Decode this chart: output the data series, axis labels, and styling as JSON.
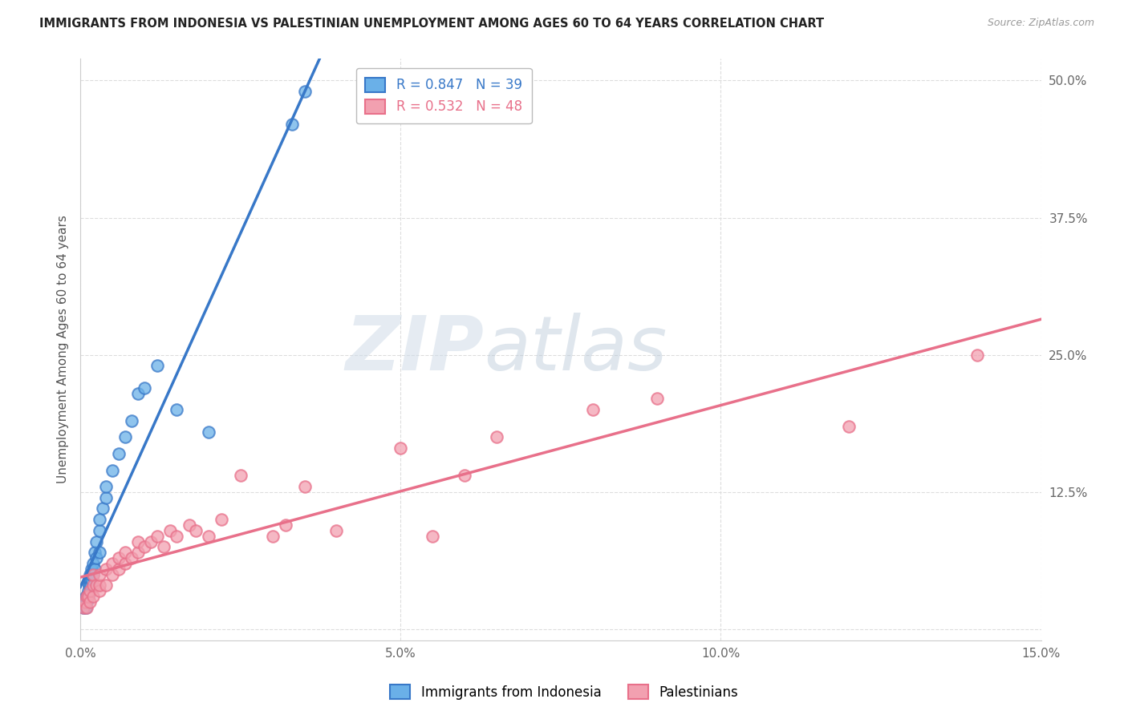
{
  "title": "IMMIGRANTS FROM INDONESIA VS PALESTINIAN UNEMPLOYMENT AMONG AGES 60 TO 64 YEARS CORRELATION CHART",
  "source": "Source: ZipAtlas.com",
  "ylabel": "Unemployment Among Ages 60 to 64 years",
  "xlim": [
    0.0,
    0.15
  ],
  "ylim": [
    -0.01,
    0.52
  ],
  "xticks": [
    0.0,
    0.05,
    0.1,
    0.15
  ],
  "xticklabels": [
    "0.0%",
    "5.0%",
    "10.0%",
    "15.0%"
  ],
  "yticks": [
    0.0,
    0.125,
    0.25,
    0.375,
    0.5
  ],
  "yticklabels": [
    "",
    "12.5%",
    "25.0%",
    "37.5%",
    "50.0%"
  ],
  "legend_labels": [
    "Immigrants from Indonesia",
    "Palestinians"
  ],
  "blue_R": 0.847,
  "blue_N": 39,
  "pink_R": 0.532,
  "pink_N": 48,
  "blue_color": "#6ab0e8",
  "pink_color": "#f2a0b0",
  "blue_line_color": "#3878c8",
  "pink_line_color": "#e8708a",
  "watermark_zip": "ZIP",
  "watermark_atlas": "atlas",
  "blue_scatter_x": [
    0.0005,
    0.0007,
    0.0008,
    0.0009,
    0.001,
    0.001,
    0.0012,
    0.0012,
    0.0013,
    0.0014,
    0.0015,
    0.0015,
    0.0016,
    0.0017,
    0.0018,
    0.0018,
    0.002,
    0.002,
    0.0022,
    0.0022,
    0.0025,
    0.0025,
    0.003,
    0.003,
    0.003,
    0.0035,
    0.004,
    0.004,
    0.005,
    0.006,
    0.007,
    0.008,
    0.009,
    0.01,
    0.012,
    0.015,
    0.02,
    0.033,
    0.035
  ],
  "blue_scatter_y": [
    0.02,
    0.025,
    0.02,
    0.03,
    0.025,
    0.03,
    0.03,
    0.035,
    0.04,
    0.04,
    0.045,
    0.05,
    0.04,
    0.045,
    0.05,
    0.055,
    0.05,
    0.06,
    0.055,
    0.07,
    0.065,
    0.08,
    0.07,
    0.09,
    0.1,
    0.11,
    0.12,
    0.13,
    0.145,
    0.16,
    0.175,
    0.19,
    0.215,
    0.22,
    0.24,
    0.2,
    0.18,
    0.46,
    0.49
  ],
  "pink_scatter_x": [
    0.0005,
    0.0007,
    0.001,
    0.001,
    0.0012,
    0.0015,
    0.0015,
    0.002,
    0.002,
    0.002,
    0.0025,
    0.003,
    0.003,
    0.003,
    0.004,
    0.004,
    0.005,
    0.005,
    0.006,
    0.006,
    0.007,
    0.007,
    0.008,
    0.009,
    0.009,
    0.01,
    0.011,
    0.012,
    0.013,
    0.014,
    0.015,
    0.017,
    0.018,
    0.02,
    0.022,
    0.025,
    0.03,
    0.032,
    0.035,
    0.04,
    0.05,
    0.055,
    0.06,
    0.065,
    0.08,
    0.09,
    0.12,
    0.14
  ],
  "pink_scatter_y": [
    0.02,
    0.025,
    0.02,
    0.03,
    0.03,
    0.025,
    0.035,
    0.03,
    0.04,
    0.05,
    0.04,
    0.035,
    0.04,
    0.05,
    0.04,
    0.055,
    0.05,
    0.06,
    0.055,
    0.065,
    0.06,
    0.07,
    0.065,
    0.07,
    0.08,
    0.075,
    0.08,
    0.085,
    0.075,
    0.09,
    0.085,
    0.095,
    0.09,
    0.085,
    0.1,
    0.14,
    0.085,
    0.095,
    0.13,
    0.09,
    0.165,
    0.085,
    0.14,
    0.175,
    0.2,
    0.21,
    0.185,
    0.25
  ]
}
